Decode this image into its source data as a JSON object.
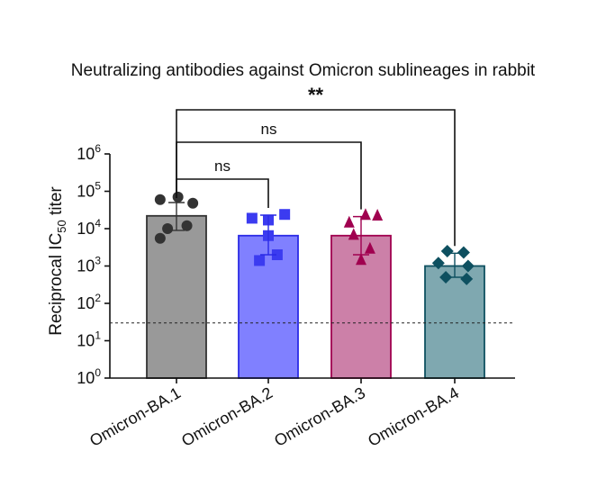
{
  "chart_data": {
    "type": "bar",
    "title": "Neutralizing antibodies against Omicron sublineages in rabbit",
    "ylabel": {
      "prefix": "Reciprocal IC",
      "subscript": "50",
      "suffix": " titer"
    },
    "yscale": "log10",
    "ylim": [
      1,
      1000000
    ],
    "yticks": [
      {
        "base": "10",
        "exp": "0",
        "value": 1
      },
      {
        "base": "10",
        "exp": "1",
        "value": 10
      },
      {
        "base": "10",
        "exp": "2",
        "value": 100
      },
      {
        "base": "10",
        "exp": "3",
        "value": 1000
      },
      {
        "base": "10",
        "exp": "4",
        "value": 10000
      },
      {
        "base": "10",
        "exp": "5",
        "value": 100000
      },
      {
        "base": "10",
        "exp": "6",
        "value": 1000000
      }
    ],
    "categories": [
      "Omicron-BA.1",
      "Omicron-BA.2",
      "Omicron-BA.3",
      "Omicron-BA.4"
    ],
    "bars": [
      {
        "category": "Omicron-BA.1",
        "value": 22000,
        "err_low": 9000,
        "err_high": 50000,
        "fill": "#999999",
        "stroke": "#333333",
        "marker": "circle",
        "marker_color": "#333333",
        "points": [
          60000,
          70000,
          48000,
          10000,
          12000,
          5500
        ],
        "jitter": [
          -0.55,
          0.05,
          0.55,
          -0.3,
          0.35,
          -0.55
        ]
      },
      {
        "category": "Omicron-BA.2",
        "value": 6500,
        "err_low": 2000,
        "err_high": 23000,
        "fill": "#8080ff",
        "stroke": "#2b2be6",
        "marker": "square",
        "marker_color": "#3b3bf0",
        "points": [
          19000,
          17000,
          24000,
          6500,
          2000,
          1400
        ],
        "jitter": [
          -0.55,
          0.0,
          0.55,
          0.0,
          0.3,
          -0.3
        ]
      },
      {
        "category": "Omicron-BA.3",
        "value": 6500,
        "err_low": 2000,
        "err_high": 21000,
        "fill": "#cc80a8",
        "stroke": "#a0004f",
        "marker": "triangle",
        "marker_color": "#a0004f",
        "points": [
          15000,
          24000,
          23000,
          7000,
          3000,
          1500
        ],
        "jitter": [
          -0.4,
          0.15,
          0.55,
          -0.25,
          0.3,
          0.0
        ]
      },
      {
        "category": "Omicron-BA.4",
        "value": 1000,
        "err_low": 500,
        "err_high": 2200,
        "fill": "#7fa8b0",
        "stroke": "#0e5060",
        "marker": "diamond",
        "marker_color": "#0e5060",
        "points": [
          2500,
          2300,
          1200,
          1000,
          500,
          450
        ],
        "jitter": [
          -0.25,
          0.3,
          -0.55,
          0.45,
          -0.3,
          0.4
        ]
      }
    ],
    "limit_of_detection": 30,
    "significance": [
      {
        "from": "Omicron-BA.1",
        "to": "Omicron-BA.2",
        "label": "ns",
        "level": 0
      },
      {
        "from": "Omicron-BA.1",
        "to": "Omicron-BA.3",
        "label": "ns",
        "level": 1
      },
      {
        "from": "Omicron-BA.1",
        "to": "Omicron-BA.4",
        "label": "**",
        "level": 2
      }
    ]
  }
}
